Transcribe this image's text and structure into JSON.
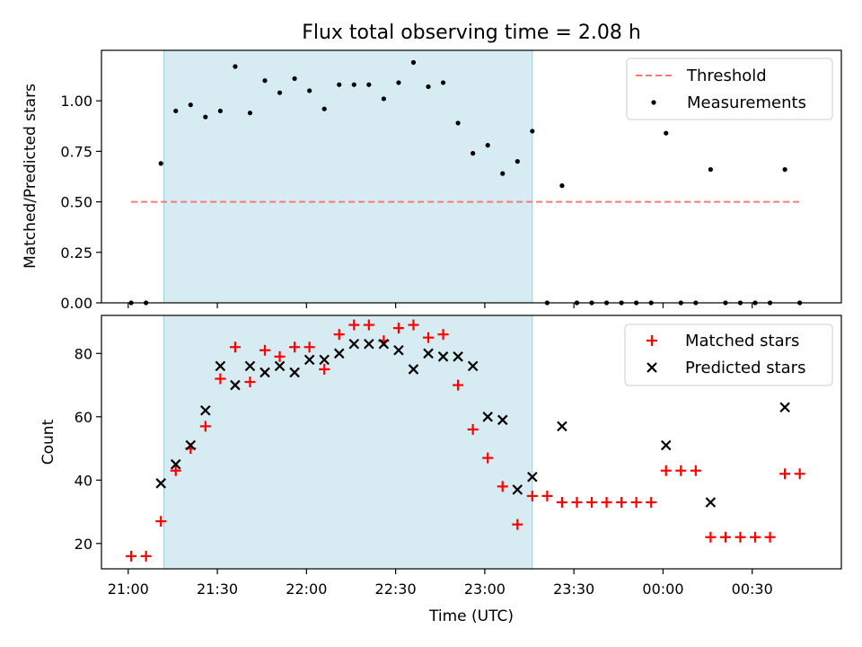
{
  "chart_data": [
    {
      "type": "scatter",
      "title": "Flux total observing time = 2.08 h",
      "xlabel": "",
      "ylabel": "Matched/Predicted stars",
      "xlim": [
        "20:51",
        "01:00"
      ],
      "ylim": [
        0,
        1.25
      ],
      "yticks": [
        0.0,
        0.25,
        0.5,
        0.75,
        1.0
      ],
      "ytick_labels": [
        "0.00",
        "0.25",
        "0.50",
        "0.75",
        "1.00"
      ],
      "shaded_region": [
        "21:12",
        "23:16"
      ],
      "legend_position": "top-right",
      "threshold": {
        "name": "Threshold",
        "value": 0.5,
        "x_range": [
          "21:01",
          "00:46"
        ],
        "color": "#ff7777",
        "style": "dashed"
      },
      "series": [
        {
          "name": "Measurements",
          "color": "#000000",
          "marker": "dot",
          "x": [
            "21:01",
            "21:06",
            "21:11",
            "21:16",
            "21:21",
            "21:26",
            "21:31",
            "21:36",
            "21:41",
            "21:46",
            "21:51",
            "21:56",
            "22:01",
            "22:06",
            "22:11",
            "22:16",
            "22:21",
            "22:26",
            "22:31",
            "22:36",
            "22:41",
            "22:46",
            "22:51",
            "22:56",
            "23:01",
            "23:06",
            "23:11",
            "23:16",
            "23:21",
            "23:26",
            "23:31",
            "23:36",
            "23:41",
            "23:46",
            "23:51",
            "23:56",
            "00:01",
            "00:06",
            "00:11",
            "00:16",
            "00:21",
            "00:26",
            "00:31",
            "00:36",
            "00:41",
            "00:46"
          ],
          "y": [
            0,
            0,
            0.69,
            0.95,
            0.98,
            0.92,
            0.95,
            1.17,
            0.94,
            1.1,
            1.04,
            1.11,
            1.05,
            0.96,
            1.08,
            1.08,
            1.08,
            1.01,
            1.09,
            1.19,
            1.07,
            1.09,
            0.89,
            0.74,
            0.78,
            0.64,
            0.7,
            0.85,
            0,
            0.58,
            0,
            0,
            0,
            0,
            0,
            0,
            0.84,
            0,
            0,
            0.66,
            0,
            0,
            0,
            0,
            0.66,
            0
          ]
        }
      ]
    },
    {
      "type": "scatter",
      "title": "",
      "xlabel": "Time (UTC)",
      "ylabel": "Count",
      "xlim": [
        "20:51",
        "01:00"
      ],
      "ylim": [
        12,
        92
      ],
      "yticks": [
        20,
        40,
        60,
        80
      ],
      "ytick_labels": [
        "20",
        "40",
        "60",
        "80"
      ],
      "xticks": [
        "21:00",
        "21:30",
        "22:00",
        "22:30",
        "23:00",
        "23:30",
        "00:00",
        "00:30"
      ],
      "shaded_region": [
        "21:12",
        "23:16"
      ],
      "legend_position": "top-right",
      "series": [
        {
          "name": "Matched stars",
          "color": "#ff0000",
          "marker": "plus",
          "x": [
            "21:01",
            "21:06",
            "21:11",
            "21:16",
            "21:21",
            "21:26",
            "21:31",
            "21:36",
            "21:41",
            "21:46",
            "21:51",
            "21:56",
            "22:01",
            "22:06",
            "22:11",
            "22:16",
            "22:21",
            "22:26",
            "22:31",
            "22:36",
            "22:41",
            "22:46",
            "22:51",
            "22:56",
            "23:01",
            "23:06",
            "23:11",
            "23:16",
            "23:21",
            "23:26",
            "23:31",
            "23:36",
            "23:41",
            "23:46",
            "23:51",
            "23:56",
            "00:01",
            "00:06",
            "00:11",
            "00:16",
            "00:21",
            "00:26",
            "00:31",
            "00:36",
            "00:41",
            "00:46"
          ],
          "y": [
            16,
            16,
            27,
            43,
            50,
            57,
            72,
            82,
            71,
            81,
            79,
            82,
            82,
            75,
            86,
            89,
            89,
            84,
            88,
            89,
            85,
            86,
            70,
            56,
            47,
            38,
            26,
            35,
            35,
            33,
            33,
            33,
            33,
            33,
            33,
            33,
            43,
            43,
            43,
            22,
            22,
            22,
            22,
            22,
            42,
            42
          ]
        },
        {
          "name": "Predicted stars",
          "color": "#000000",
          "marker": "x",
          "x": [
            "21:11",
            "21:16",
            "21:21",
            "21:26",
            "21:31",
            "21:36",
            "21:41",
            "21:46",
            "21:51",
            "21:56",
            "22:01",
            "22:06",
            "22:11",
            "22:16",
            "22:21",
            "22:26",
            "22:31",
            "22:36",
            "22:41",
            "22:46",
            "22:51",
            "22:56",
            "23:01",
            "23:06",
            "23:11",
            "23:16",
            "23:26",
            "00:01",
            "00:16",
            "00:41"
          ],
          "y": [
            39,
            45,
            51,
            62,
            76,
            70,
            76,
            74,
            76,
            74,
            78,
            78,
            80,
            83,
            83,
            83,
            81,
            75,
            80,
            79,
            79,
            76,
            60,
            59,
            37,
            41,
            57,
            51,
            33,
            63
          ]
        }
      ]
    }
  ]
}
